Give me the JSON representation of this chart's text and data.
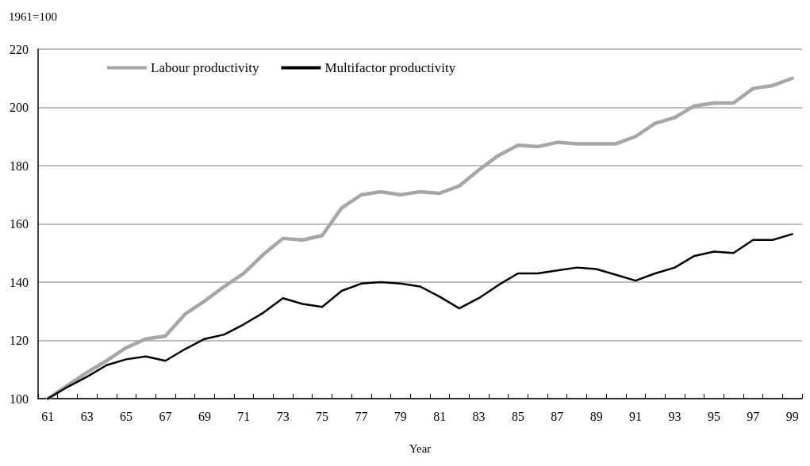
{
  "chart_data": {
    "type": "line",
    "ylabel": "1961=100",
    "xlabel": "Year",
    "categories": [
      "61",
      null,
      "63",
      null,
      "65",
      null,
      "67",
      null,
      "69",
      null,
      "71",
      null,
      "73",
      null,
      "75",
      null,
      "77",
      null,
      "79",
      null,
      "81",
      null,
      "83",
      null,
      "85",
      null,
      "87",
      null,
      "89",
      null,
      "91",
      null,
      "93",
      null,
      "95",
      null,
      "97",
      null,
      "99"
    ],
    "series": [
      {
        "name": "Labour productivity",
        "color": "#a6a6a6",
        "values": [
          100,
          104.5,
          109,
          113,
          117.5,
          120.5,
          121.5,
          129,
          133.5,
          138.5,
          143,
          149.5,
          155,
          154.5,
          156,
          165.5,
          170,
          171,
          170,
          171,
          170.5,
          173,
          178.5,
          183.5,
          187,
          186.5,
          188,
          187.5,
          187.5,
          187.5,
          190,
          194.5,
          196.5,
          200.5,
          201.5,
          201.5,
          206.5,
          207.5,
          210
        ]
      },
      {
        "name": "Multifactor productivity",
        "color": "#000000",
        "values": [
          100,
          104,
          107.5,
          111.5,
          113.5,
          114.5,
          113,
          117,
          120.5,
          122,
          125.5,
          129.5,
          134.5,
          132.5,
          131.5,
          137,
          139.5,
          140,
          139.5,
          138.5,
          135,
          131,
          134.5,
          139,
          143,
          143,
          144,
          145,
          144.5,
          142.5,
          140.5,
          143,
          145,
          149,
          150.5,
          150,
          154.5,
          154.5,
          156.5
        ]
      }
    ],
    "ylim": [
      100,
      220
    ],
    "yticks": [
      100,
      120,
      140,
      160,
      180,
      200,
      220
    ],
    "grid": "y",
    "legend": "top left",
    "marker": "none",
    "line_style": "solid"
  }
}
